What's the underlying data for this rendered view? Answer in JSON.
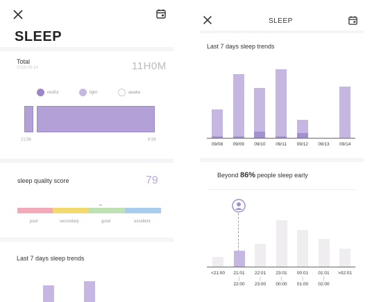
{
  "left": {
    "title": "SLEEP",
    "total": {
      "label": "Total",
      "sub": "2019-09-14",
      "value": "11H0M"
    },
    "legend": [
      {
        "label": "restful",
        "color": "#9b86c8"
      },
      {
        "label": "light",
        "color": "#c6b7e2"
      },
      {
        "label": "awake",
        "color": "#ffffff"
      }
    ],
    "time_start": "21:56",
    "time_end": "8:58",
    "score": {
      "label": "sleep quality score",
      "value": "79",
      "levels": [
        {
          "label": "poor",
          "color": "#f4a9b8"
        },
        {
          "label": "secondary",
          "color": "#f3d86d"
        },
        {
          "label": "good",
          "color": "#bfe0b2"
        },
        {
          "label": "excellent",
          "color": "#a8cceb"
        }
      ]
    },
    "trends_title": "Last 7 days sleep trends"
  },
  "right": {
    "title": "SLEEP",
    "trends_title": "Last 7 days sleep trends",
    "beyond": {
      "prefix": "Beyond",
      "percent": "86%",
      "suffix": "people sleep early"
    }
  },
  "chart_data": [
    {
      "type": "bar",
      "title": "Last 7 days sleep trends",
      "categories": [
        "09/08",
        "09/09",
        "09/10",
        "09/11",
        "09/12",
        "09/13",
        "09/14"
      ],
      "series": [
        {
          "values": [
            0.45,
            1.0,
            0.78,
            1.08,
            0.28,
            0,
            0.8
          ]
        },
        {
          "values": [
            0.02,
            0.02,
            0.1,
            0.02,
            0.08,
            0,
            0
          ]
        }
      ]
    },
    {
      "type": "bar",
      "categories": [
        "<21:00",
        "21:01-22:00",
        "22:01-23:00",
        "23:01-00:00",
        "00:01-01:00",
        "01:01-02:00",
        ">02:01"
      ],
      "values": [
        0.16,
        0.27,
        0.39,
        0.79,
        0.62,
        0.47,
        0.31
      ],
      "highlight_index": 1
    }
  ]
}
